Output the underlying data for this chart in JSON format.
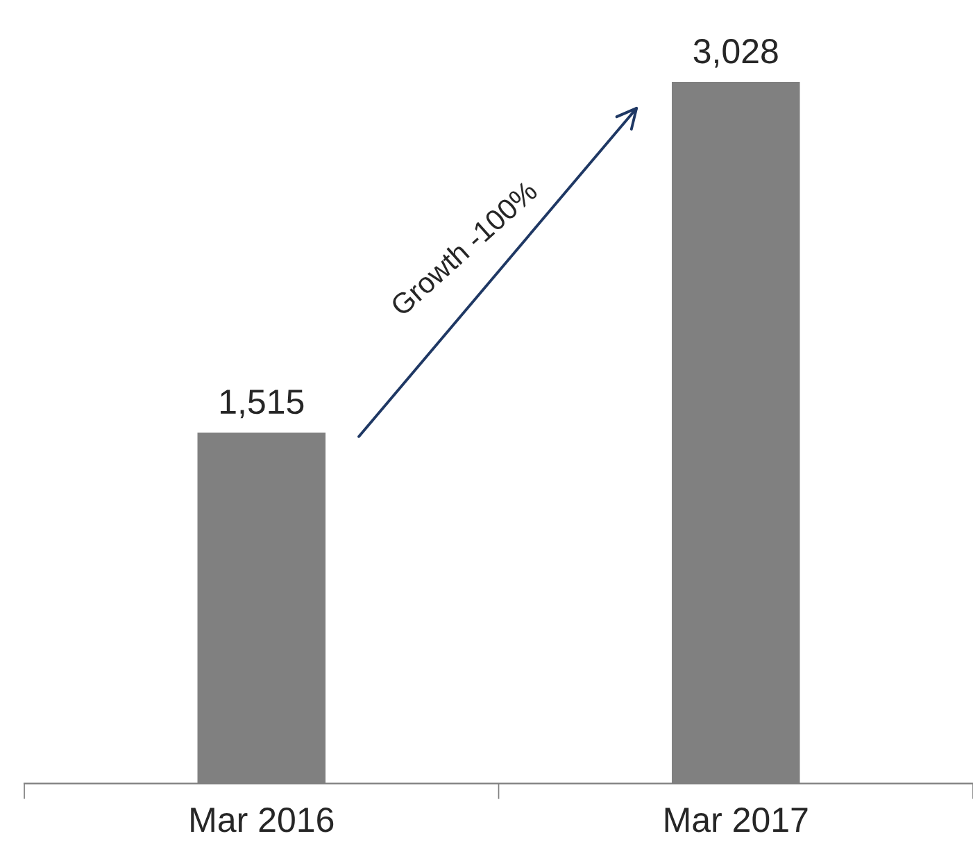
{
  "chart_data": {
    "type": "bar",
    "categories": [
      "Mar 2016",
      "Mar 2017"
    ],
    "values": [
      1515,
      3028
    ],
    "color": "#808080",
    "data_labels": true,
    "value_labels": [
      "1,515",
      "3,028"
    ],
    "grid": false,
    "legend": false,
    "annotations": [
      "Growth -100%"
    ]
  }
}
